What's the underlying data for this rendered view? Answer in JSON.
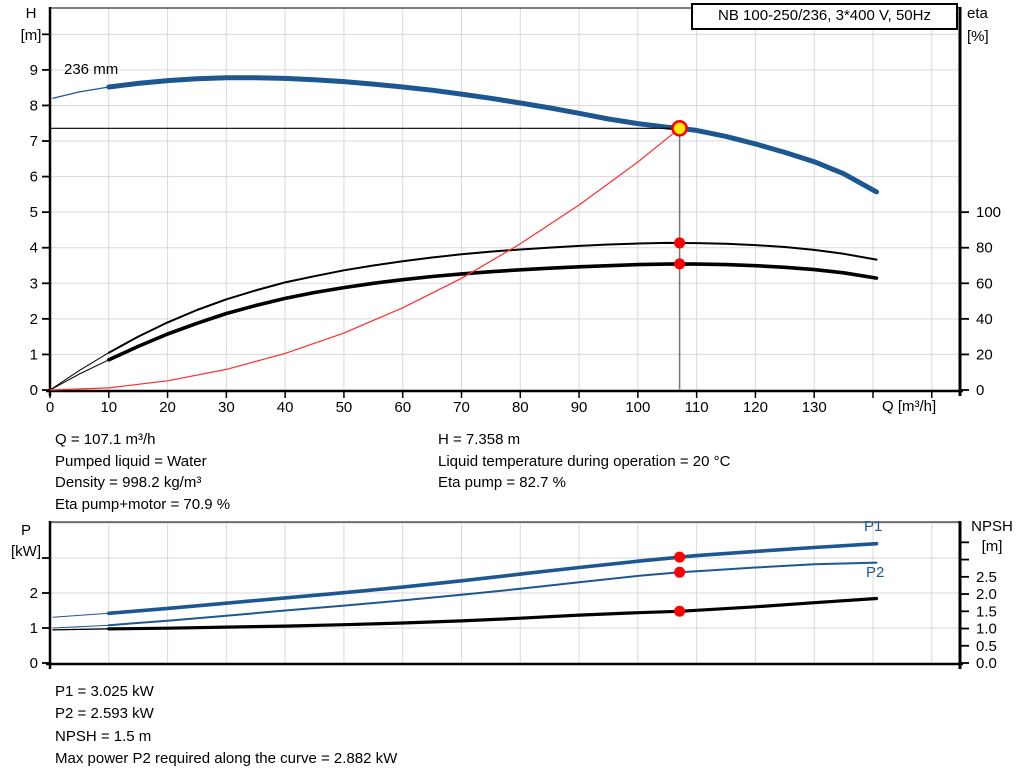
{
  "title_box": {
    "text": "NB 100-250/236, 3*400 V, 50Hz"
  },
  "top_chart": {
    "y_left_label": [
      "H",
      "[m]"
    ],
    "y_right_label": [
      "eta",
      "[%]"
    ],
    "x_label": "Q [m³/h]",
    "impeller_label": "236 mm"
  },
  "bottom_chart": {
    "y_left_label": [
      "P",
      "[kW]"
    ],
    "y_right_label": [
      "NPSH",
      "[m]"
    ],
    "p1_label": "P1",
    "p2_label": "P2"
  },
  "operating_point_info": {
    "left_lines": [
      "Q = 107.1 m³/h",
      "Pumped liquid = Water",
      "Density = 998.2 kg/m³",
      "Eta pump+motor = 70.9 %"
    ],
    "right_lines": [
      "H = 7.358 m",
      "Liquid temperature during operation = 20 °C",
      "Eta pump = 82.7 %"
    ],
    "bottom_lines": [
      "P1 = 3.025 kW",
      "P2 = 2.593 kW",
      "NPSH = 1.5 m",
      "Max power P2 required along the curve = 2.882 kW"
    ]
  },
  "colors": {
    "curve_blue": "#1d5791",
    "curve_black": "#000000",
    "system_red": "#ff2d2d",
    "marker_red": "#ff0000",
    "duty_yellow": "#ffec00",
    "grid_gray": "#d9d9d9",
    "axis_black": "#000000",
    "duty_vline_gray": "#777777"
  },
  "chart_data": [
    {
      "type": "line",
      "title": "NB 100-250/236, 3*400 V, 50Hz",
      "xlabel": "Q [m³/h]",
      "ylabel_left": "H [m]",
      "ylabel_right": "eta [%]",
      "x_range": [
        0,
        154.8
      ],
      "y_left_range": [
        0,
        10.74
      ],
      "y_right_range": [
        0,
        214.8
      ],
      "grid": true,
      "x_ticks": [
        {
          "v": 0,
          "label": "0"
        },
        {
          "v": 10,
          "label": "10"
        },
        {
          "v": 20,
          "label": "20"
        },
        {
          "v": 30,
          "label": "30"
        },
        {
          "v": 40,
          "label": "40"
        },
        {
          "v": 50,
          "label": "50"
        },
        {
          "v": 60,
          "label": "60"
        },
        {
          "v": 70,
          "label": "70"
        },
        {
          "v": 80,
          "label": "80"
        },
        {
          "v": 90,
          "label": "90"
        },
        {
          "v": 100,
          "label": "100"
        },
        {
          "v": 110,
          "label": "110"
        },
        {
          "v": 120,
          "label": "120"
        },
        {
          "v": 130,
          "label": "130"
        },
        {
          "v": 140
        },
        {
          "v": 150
        }
      ],
      "y_left_ticks": [
        {
          "v": 0,
          "label": "0"
        },
        {
          "v": 1,
          "label": "1"
        },
        {
          "v": 2,
          "label": "2"
        },
        {
          "v": 3,
          "label": "3"
        },
        {
          "v": 4,
          "label": "4"
        },
        {
          "v": 5,
          "label": "5"
        },
        {
          "v": 6,
          "label": "6"
        },
        {
          "v": 7,
          "label": "7"
        },
        {
          "v": 8,
          "label": "8"
        },
        {
          "v": 9,
          "label": "9"
        },
        {
          "v": 10
        }
      ],
      "y_right_ticks": [
        {
          "v": 0,
          "label": "0"
        },
        {
          "v": 20,
          "label": "20"
        },
        {
          "v": 40,
          "label": "40"
        },
        {
          "v": 60,
          "label": "60"
        },
        {
          "v": 80,
          "label": "80"
        },
        {
          "v": 100,
          "label": "100"
        }
      ],
      "series": [
        {
          "name": "head-curve-236mm",
          "label": "236 mm",
          "axis": "left",
          "color": "#1d5791",
          "width": 5,
          "lead_width": 1.3,
          "thick_from": 10,
          "points": [
            [
              0.5,
              8.2
            ],
            [
              5,
              8.38
            ],
            [
              10,
              8.52
            ],
            [
              15,
              8.62
            ],
            [
              20,
              8.7
            ],
            [
              25,
              8.75
            ],
            [
              30,
              8.78
            ],
            [
              35,
              8.78
            ],
            [
              40,
              8.76
            ],
            [
              45,
              8.72
            ],
            [
              50,
              8.67
            ],
            [
              55,
              8.6
            ],
            [
              60,
              8.52
            ],
            [
              65,
              8.43
            ],
            [
              70,
              8.32
            ],
            [
              75,
              8.2
            ],
            [
              80,
              8.07
            ],
            [
              85,
              7.93
            ],
            [
              90,
              7.78
            ],
            [
              95,
              7.62
            ],
            [
              100,
              7.49
            ],
            [
              105,
              7.39
            ],
            [
              107.1,
              7.358
            ],
            [
              110,
              7.3
            ],
            [
              115,
              7.13
            ],
            [
              120,
              6.92
            ],
            [
              125,
              6.68
            ],
            [
              130,
              6.42
            ],
            [
              135,
              6.08
            ],
            [
              140.6,
              5.57
            ]
          ]
        },
        {
          "name": "eta-pump-curve",
          "axis": "right",
          "color": "#000000",
          "width": 2,
          "lead_width": 1,
          "thick_from": 10,
          "points": [
            [
              0,
              0
            ],
            [
              5,
              11
            ],
            [
              10,
              21
            ],
            [
              15,
              30
            ],
            [
              20,
              38
            ],
            [
              25,
              45
            ],
            [
              30,
              51
            ],
            [
              35,
              56
            ],
            [
              40,
              60.5
            ],
            [
              45,
              64
            ],
            [
              50,
              67.3
            ],
            [
              55,
              70
            ],
            [
              60,
              72.4
            ],
            [
              65,
              74.5
            ],
            [
              70,
              76.3
            ],
            [
              75,
              77.8
            ],
            [
              80,
              79
            ],
            [
              85,
              80.1
            ],
            [
              90,
              81
            ],
            [
              95,
              81.8
            ],
            [
              100,
              82.4
            ],
            [
              105,
              82.7
            ],
            [
              110,
              82.6
            ],
            [
              115,
              82.2
            ],
            [
              120,
              81.5
            ],
            [
              125,
              80.4
            ],
            [
              130,
              78.8
            ],
            [
              135,
              76.6
            ],
            [
              140.6,
              73.3
            ]
          ]
        },
        {
          "name": "eta-pump-motor-curve",
          "axis": "right",
          "color": "#000000",
          "width": 3.6,
          "lead_width": 1,
          "thick_from": 10,
          "points": [
            [
              0,
              0
            ],
            [
              5,
              9
            ],
            [
              10,
              17
            ],
            [
              15,
              24.5
            ],
            [
              20,
              31.5
            ],
            [
              25,
              37.5
            ],
            [
              30,
              43
            ],
            [
              35,
              47.5
            ],
            [
              40,
              51.5
            ],
            [
              45,
              54.8
            ],
            [
              50,
              57.6
            ],
            [
              55,
              60
            ],
            [
              60,
              62
            ],
            [
              65,
              63.8
            ],
            [
              70,
              65.3
            ],
            [
              75,
              66.5
            ],
            [
              80,
              67.6
            ],
            [
              85,
              68.5
            ],
            [
              90,
              69.3
            ],
            [
              95,
              69.9
            ],
            [
              100,
              70.5
            ],
            [
              105,
              70.8
            ],
            [
              107.1,
              70.9
            ],
            [
              110,
              70.8
            ],
            [
              115,
              70.5
            ],
            [
              120,
              69.9
            ],
            [
              125,
              69
            ],
            [
              130,
              67.7
            ],
            [
              135,
              65.9
            ],
            [
              140.6,
              62.9
            ]
          ]
        },
        {
          "name": "system-curve",
          "axis": "left",
          "color": "#ff2d2d",
          "width": 1.2,
          "points": [
            [
              0,
              0
            ],
            [
              10,
              0.06
            ],
            [
              20,
              0.26
            ],
            [
              30,
              0.58
            ],
            [
              40,
              1.03
            ],
            [
              50,
              1.6
            ],
            [
              60,
              2.31
            ],
            [
              70,
              3.14
            ],
            [
              80,
              4.11
            ],
            [
              90,
              5.2
            ],
            [
              100,
              6.41
            ],
            [
              107.1,
              7.358
            ]
          ]
        }
      ],
      "duty_point": {
        "q": 107.1,
        "h": 7.358
      },
      "markers": [
        {
          "q": 107.1,
          "value": 82.7,
          "axis": "right"
        },
        {
          "q": 107.1,
          "value": 70.9,
          "axis": "right"
        }
      ]
    },
    {
      "type": "line",
      "ylabel_left": "P [kW]",
      "ylabel_right": "NPSH [m]",
      "x_range": [
        0,
        154.8
      ],
      "y_left_range": [
        0,
        4.03
      ],
      "y_right_range": [
        0,
        4.09
      ],
      "grid": true,
      "x_ticks": [],
      "y_left_ticks": [
        {
          "v": 0,
          "label": "0"
        },
        {
          "v": 1,
          "label": "1"
        },
        {
          "v": 2,
          "label": "2"
        },
        {
          "v": 3
        }
      ],
      "y_right_ticks": [
        {
          "v": 0,
          "label": "0.0"
        },
        {
          "v": 0.5,
          "label": "0.5"
        },
        {
          "v": 1,
          "label": "1.0"
        },
        {
          "v": 1.5,
          "label": "1.5"
        },
        {
          "v": 2,
          "label": "2.0"
        },
        {
          "v": 2.5,
          "label": "2.5"
        },
        {
          "v": 3
        },
        {
          "v": 3.5
        }
      ],
      "series": [
        {
          "name": "p1-curve",
          "label": "P1",
          "axis": "left",
          "color": "#1d5791",
          "width": 3.6,
          "lead_width": 1,
          "thick_from": 10,
          "points": [
            [
              0.5,
              1.31
            ],
            [
              10,
              1.42
            ],
            [
              20,
              1.56
            ],
            [
              30,
              1.71
            ],
            [
              40,
              1.86
            ],
            [
              50,
              2.01
            ],
            [
              60,
              2.17
            ],
            [
              70,
              2.35
            ],
            [
              80,
              2.54
            ],
            [
              90,
              2.73
            ],
            [
              100,
              2.91
            ],
            [
              107.1,
              3.025
            ],
            [
              110,
              3.07
            ],
            [
              120,
              3.19
            ],
            [
              130,
              3.3
            ],
            [
              140.6,
              3.41
            ]
          ]
        },
        {
          "name": "p2-curve",
          "label": "P2",
          "axis": "left",
          "color": "#1d5791",
          "width": 2,
          "lead_width": 1,
          "thick_from": 10,
          "points": [
            [
              0.5,
              1.0
            ],
            [
              10,
              1.08
            ],
            [
              20,
              1.21
            ],
            [
              30,
              1.35
            ],
            [
              40,
              1.5
            ],
            [
              50,
              1.64
            ],
            [
              60,
              1.79
            ],
            [
              70,
              1.95
            ],
            [
              80,
              2.12
            ],
            [
              90,
              2.31
            ],
            [
              100,
              2.49
            ],
            [
              107.1,
              2.593
            ],
            [
              110,
              2.62
            ],
            [
              120,
              2.73
            ],
            [
              130,
              2.82
            ],
            [
              140.6,
              2.87
            ]
          ]
        },
        {
          "name": "npsh-curve",
          "axis": "right",
          "color": "#000000",
          "width": 3.2,
          "lead_width": 1.2,
          "thick_from": 10,
          "points": [
            [
              0.5,
              0.96
            ],
            [
              10,
              0.99
            ],
            [
              20,
              1.01
            ],
            [
              30,
              1.04
            ],
            [
              40,
              1.07
            ],
            [
              50,
              1.11
            ],
            [
              60,
              1.16
            ],
            [
              70,
              1.22
            ],
            [
              80,
              1.3
            ],
            [
              90,
              1.39
            ],
            [
              100,
              1.46
            ],
            [
              107.1,
              1.5
            ],
            [
              110,
              1.53
            ],
            [
              120,
              1.63
            ],
            [
              130,
              1.75
            ],
            [
              140.6,
              1.87
            ]
          ]
        }
      ],
      "markers": [
        {
          "q": 107.1,
          "value": 3.025,
          "axis": "left"
        },
        {
          "q": 107.1,
          "value": 2.593,
          "axis": "left"
        },
        {
          "q": 107.1,
          "value": 1.5,
          "axis": "right"
        }
      ]
    }
  ]
}
